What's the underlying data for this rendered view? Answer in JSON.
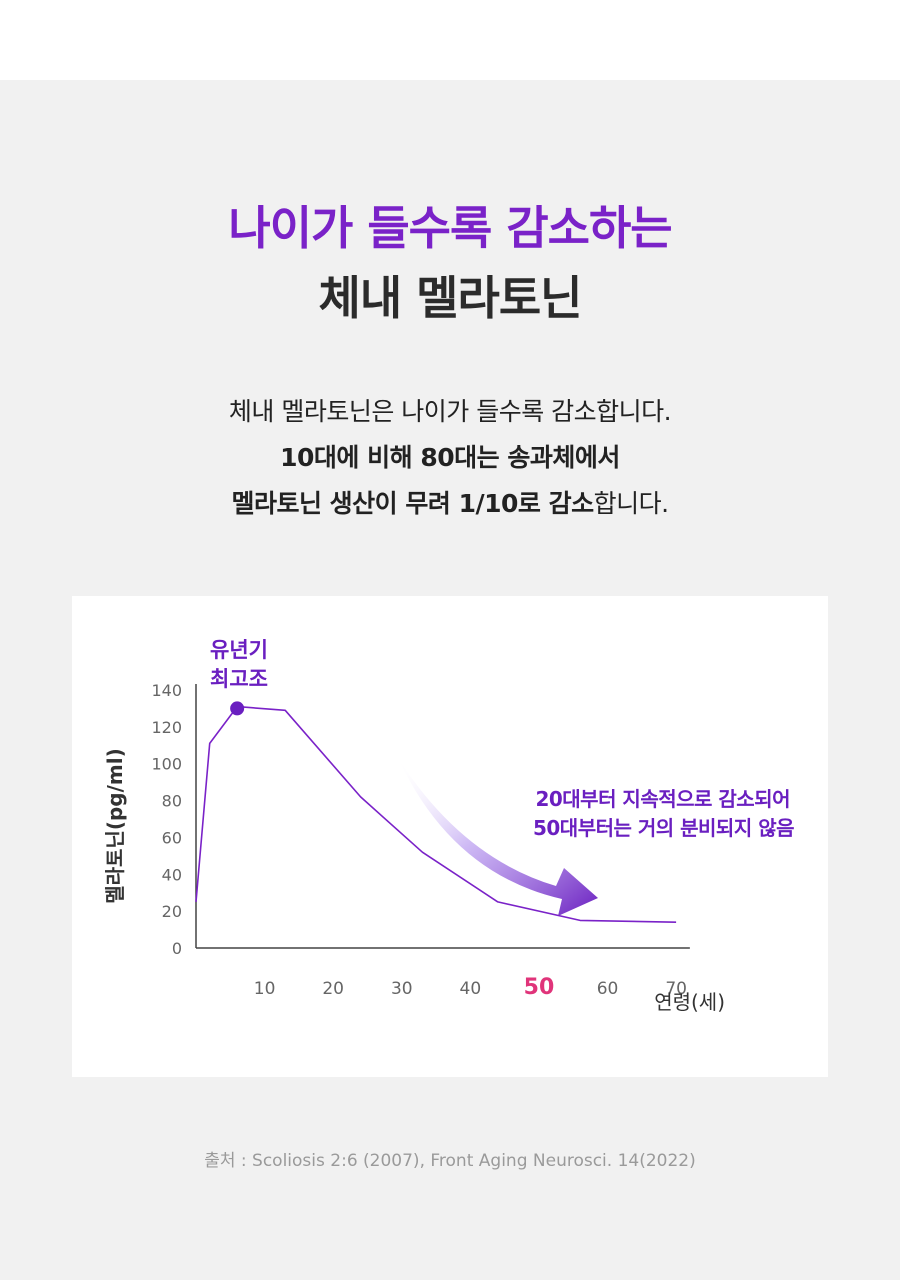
{
  "heading": {
    "line1": "나이가 들수록 감소하는",
    "line2": "체내 멜라토닌"
  },
  "description": {
    "line1": "체내 멜라토닌은 나이가 들수록 감소합니다.",
    "line2": "10대에 비해 80대는 송과체에서",
    "line3_bold": "멜라토닌 생산이 무려 1/10로 감소",
    "line3_tail": "합니다."
  },
  "chart_data": {
    "type": "line",
    "ylabel": "멜라토닌(pg/ml)",
    "xlabel": "연령(세)",
    "ylim": [
      0,
      140
    ],
    "xlim": [
      0,
      71
    ],
    "y_ticks": [
      0,
      20,
      40,
      60,
      80,
      100,
      120,
      140
    ],
    "x_ticks": [
      {
        "value": 10,
        "label": "10",
        "highlight": false
      },
      {
        "value": 20,
        "label": "20",
        "highlight": false
      },
      {
        "value": 30,
        "label": "30",
        "highlight": false
      },
      {
        "value": 40,
        "label": "40",
        "highlight": false
      },
      {
        "value": 50,
        "label": "50",
        "highlight": true
      },
      {
        "value": 60,
        "label": "60",
        "highlight": false
      },
      {
        "value": 70,
        "label": "70",
        "highlight": false
      }
    ],
    "series": [
      {
        "x": [
          0,
          2,
          6,
          13,
          24,
          33,
          44,
          56,
          70
        ],
        "y": [
          25,
          111,
          131,
          129,
          82,
          52,
          25,
          15,
          14
        ]
      }
    ],
    "peak": {
      "x": 6,
      "y": 130,
      "label_line1": "유년기",
      "label_line2": "최고조"
    },
    "annotation": {
      "line1": "20대부터 지속적으로 감소되어",
      "line2": "50대부터는 거의 분비되지 않음"
    },
    "colors": {
      "line": "#7a22c8",
      "label": "#6a1fc0",
      "highlight": "#e0347a",
      "axis": "#444444",
      "tick_text": "#666666"
    }
  },
  "source": "출처 : Scoliosis 2:6 (2007), Front Aging Neurosci. 14(2022)"
}
